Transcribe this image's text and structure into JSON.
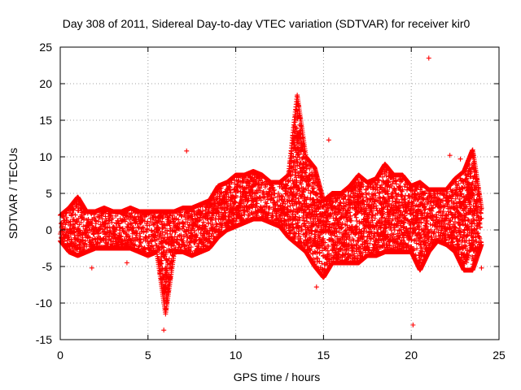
{
  "chart_data": {
    "type": "scatter",
    "title": "Day 308 of 2011, Sidereal Day-to-day VTEC variation (SDTVAR) for receiver kir0",
    "xlabel": "GPS time / hours",
    "ylabel": "SDTVAR / TECUs",
    "xlim": [
      0,
      25
    ],
    "ylim": [
      -15,
      25
    ],
    "x_ticks": [
      0,
      5,
      10,
      15,
      20,
      25
    ],
    "y_ticks": [
      -15,
      -10,
      -5,
      0,
      5,
      10,
      15,
      20,
      25
    ],
    "x_tick_labels": [
      "0",
      "5",
      "10",
      "15",
      "20",
      "25"
    ],
    "y_tick_labels": [
      "-15",
      "-10",
      "-5",
      "0",
      "5",
      "10",
      "15",
      "20",
      "25"
    ],
    "grid": true,
    "marker": "+",
    "color": "#ff0000",
    "series": [
      {
        "name": "SDTVAR",
        "envelope": {
          "x": [
            0.0,
            0.5,
            1.0,
            1.5,
            2.0,
            2.5,
            3.0,
            3.5,
            4.0,
            4.5,
            5.0,
            5.5,
            6.0,
            6.5,
            7.0,
            7.5,
            8.0,
            8.5,
            9.0,
            9.5,
            10.0,
            10.5,
            11.0,
            11.5,
            12.0,
            12.5,
            13.0,
            13.5,
            14.0,
            14.5,
            15.0,
            15.5,
            16.0,
            16.5,
            17.0,
            17.5,
            18.0,
            18.5,
            19.0,
            19.5,
            20.0,
            20.5,
            21.0,
            21.5,
            22.0,
            22.5,
            23.0,
            23.5,
            24.0
          ],
          "upper": [
            2.0,
            3.0,
            4.5,
            2.5,
            2.5,
            3.0,
            2.5,
            2.5,
            3.0,
            2.5,
            2.5,
            2.5,
            2.5,
            2.5,
            3.0,
            3.0,
            3.5,
            4.0,
            6.0,
            6.5,
            7.5,
            7.5,
            8.0,
            7.5,
            6.5,
            6.5,
            7.5,
            18.5,
            10.0,
            8.5,
            4.0,
            5.0,
            5.0,
            6.0,
            7.5,
            6.5,
            7.0,
            9.0,
            7.5,
            7.5,
            6.0,
            6.5,
            5.5,
            5.5,
            5.5,
            7.0,
            8.0,
            11.0,
            3.0
          ],
          "lower": [
            -1.5,
            -3.0,
            -3.5,
            -3.0,
            -2.5,
            -2.5,
            -2.5,
            -2.5,
            -2.5,
            -3.0,
            -3.5,
            -3.0,
            -11.5,
            -3.0,
            -3.0,
            -3.5,
            -3.0,
            -2.5,
            -1.0,
            0.0,
            0.5,
            1.0,
            1.5,
            1.5,
            1.0,
            0.5,
            -1.0,
            -2.0,
            -3.0,
            -5.0,
            -6.5,
            -4.5,
            -4.5,
            -4.5,
            -4.5,
            -3.5,
            -3.5,
            -3.0,
            -3.0,
            -3.0,
            -3.0,
            -5.5,
            -3.0,
            -1.5,
            -2.0,
            -3.0,
            -5.5,
            -5.5,
            -2.0
          ]
        },
        "outliers": [
          {
            "x": 21.0,
            "y": 23.5
          },
          {
            "x": 15.3,
            "y": 12.3
          },
          {
            "x": 7.2,
            "y": 10.8
          },
          {
            "x": 5.9,
            "y": -13.7
          },
          {
            "x": 20.1,
            "y": -13.0
          },
          {
            "x": 14.6,
            "y": -7.8
          },
          {
            "x": 3.8,
            "y": -4.5
          },
          {
            "x": 1.8,
            "y": -5.2
          },
          {
            "x": 24.0,
            "y": -5.2
          },
          {
            "x": 22.8,
            "y": 9.7
          },
          {
            "x": 22.2,
            "y": 10.2
          }
        ]
      }
    ]
  }
}
